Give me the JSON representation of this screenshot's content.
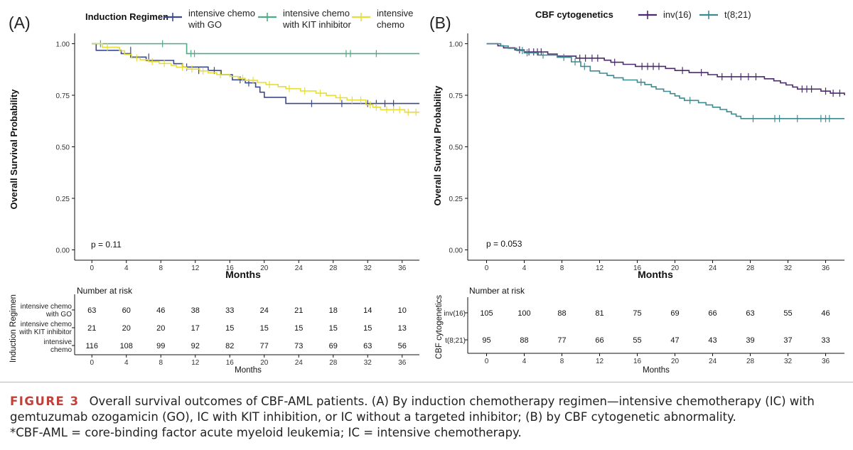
{
  "figure": {
    "caption_label": "FIGURE 3",
    "caption_text": "Overall survival outcomes of CBF-AML patients. (A) By induction chemotherapy regimen—intensive chemotherapy (IC) with gemtuzumab ozogamicin (GO), IC with KIT inhibition, or IC without a targeted inhibitor; (B) by CBF cytogenetic abnormality.",
    "caption_note": "*CBF-AML = core-binding factor acute myeloid leukemia; IC = intensive chemotherapy."
  },
  "chart_data": [
    {
      "type": "line",
      "panel_label": "(A)",
      "subtype": "kaplan-meier",
      "legend_title": "Induction Regimen",
      "legend_position": "top",
      "xlabel": "Months",
      "ylabel": "Overall Survival Probability",
      "xlim": [
        -2,
        38
      ],
      "ylim": [
        -0.05,
        1.05
      ],
      "xticks": [
        0,
        4,
        8,
        12,
        16,
        20,
        24,
        28,
        32,
        36
      ],
      "yticks": [
        0,
        0.25,
        0.5,
        0.75,
        1
      ],
      "ytick_labels": [
        "0.00",
        "0.25",
        "0.50",
        "0.75",
        "1.00"
      ],
      "grid": false,
      "p_value": "p = 0.11",
      "series": [
        {
          "name": "intensive chemo with GO",
          "legend_lines": [
            "intensive chemo",
            "with GO"
          ],
          "color": "#3b4a8c",
          "steps": [
            [
              0,
              1.0
            ],
            [
              0.5,
              0.968
            ],
            [
              3.4,
              0.952
            ],
            [
              4.5,
              0.935
            ],
            [
              6.3,
              0.919
            ],
            [
              9.5,
              0.903
            ],
            [
              10.5,
              0.887
            ],
            [
              13.5,
              0.87
            ],
            [
              15,
              0.85
            ],
            [
              16.3,
              0.825
            ],
            [
              17.8,
              0.81
            ],
            [
              19,
              0.79
            ],
            [
              19.5,
              0.765
            ],
            [
              20,
              0.74
            ],
            [
              22.5,
              0.71
            ],
            [
              38,
              0.71
            ]
          ],
          "censors": [
            [
              4.5,
              0.968
            ],
            [
              6.6,
              0.935
            ],
            [
              11,
              0.887
            ],
            [
              12.4,
              0.87
            ],
            [
              14.2,
              0.87
            ],
            [
              17.2,
              0.825
            ],
            [
              18.2,
              0.81
            ],
            [
              25.5,
              0.71
            ],
            [
              29,
              0.71
            ],
            [
              32,
              0.71
            ],
            [
              33,
              0.71
            ],
            [
              34,
              0.71
            ],
            [
              35,
              0.71
            ]
          ]
        },
        {
          "name": "intensive chemo with KIT inhibitor",
          "legend_lines": [
            "intensive chemo",
            "with KIT inhibitor"
          ],
          "color": "#4daa86",
          "steps": [
            [
              0,
              1.0
            ],
            [
              11,
              0.952
            ],
            [
              38,
              0.952
            ]
          ],
          "censors": [
            [
              1,
              1.0
            ],
            [
              8.2,
              1.0
            ],
            [
              11.5,
              0.952
            ],
            [
              11.9,
              0.952
            ],
            [
              29.5,
              0.952
            ],
            [
              30,
              0.952
            ],
            [
              33,
              0.952
            ]
          ]
        },
        {
          "name": "intensive chemo",
          "legend_lines": [
            "intensive",
            "chemo"
          ],
          "color": "#e6dd3a",
          "steps": [
            [
              0,
              1.0
            ],
            [
              1.2,
              0.983
            ],
            [
              3.2,
              0.966
            ],
            [
              3.8,
              0.948
            ],
            [
              4.6,
              0.931
            ],
            [
              5.6,
              0.922
            ],
            [
              6.6,
              0.913
            ],
            [
              7.8,
              0.904
            ],
            [
              9.2,
              0.895
            ],
            [
              9.8,
              0.886
            ],
            [
              11,
              0.877
            ],
            [
              12.5,
              0.868
            ],
            [
              13.5,
              0.859
            ],
            [
              14.5,
              0.85
            ],
            [
              16,
              0.841
            ],
            [
              17,
              0.832
            ],
            [
              17.8,
              0.822
            ],
            [
              19.2,
              0.812
            ],
            [
              20.2,
              0.802
            ],
            [
              21.6,
              0.792
            ],
            [
              22.5,
              0.782
            ],
            [
              24.2,
              0.771
            ],
            [
              26,
              0.76
            ],
            [
              27.2,
              0.749
            ],
            [
              28.3,
              0.738
            ],
            [
              29.6,
              0.727
            ],
            [
              31.8,
              0.704
            ],
            [
              32.6,
              0.692
            ],
            [
              33.5,
              0.68
            ],
            [
              36.3,
              0.668
            ],
            [
              38,
              0.668
            ]
          ],
          "censors": [
            [
              1.8,
              0.983
            ],
            [
              5.2,
              0.931
            ],
            [
              7,
              0.913
            ],
            [
              8.4,
              0.904
            ],
            [
              10.5,
              0.886
            ],
            [
              11.6,
              0.877
            ],
            [
              12.9,
              0.868
            ],
            [
              14.9,
              0.85
            ],
            [
              17.5,
              0.832
            ],
            [
              18.7,
              0.822
            ],
            [
              20.6,
              0.802
            ],
            [
              22.9,
              0.782
            ],
            [
              24.7,
              0.771
            ],
            [
              26.5,
              0.76
            ],
            [
              28.8,
              0.738
            ],
            [
              30.2,
              0.727
            ],
            [
              31.2,
              0.727
            ],
            [
              32.3,
              0.704
            ],
            [
              33,
              0.692
            ],
            [
              34.2,
              0.68
            ],
            [
              35,
              0.68
            ],
            [
              35.7,
              0.68
            ],
            [
              36.7,
              0.668
            ],
            [
              37.6,
              0.668
            ]
          ]
        }
      ],
      "risk_table": {
        "title": "Number at risk",
        "ylabel": "Induction Regimen",
        "xlabel": "Months",
        "times": [
          0,
          4,
          8,
          12,
          16,
          20,
          24,
          28,
          32,
          36
        ],
        "rows": [
          {
            "label_lines": [
              "intensive chemo",
              "with GO"
            ],
            "counts": [
              63,
              60,
              46,
              38,
              33,
              24,
              21,
              18,
              14,
              10
            ]
          },
          {
            "label_lines": [
              "intensive chemo",
              "with KIT inhibitor"
            ],
            "counts": [
              21,
              20,
              20,
              17,
              15,
              15,
              15,
              15,
              15,
              13
            ]
          },
          {
            "label_lines": [
              "intensive",
              "chemo"
            ],
            "counts": [
              116,
              108,
              99,
              92,
              82,
              77,
              73,
              69,
              63,
              56
            ]
          }
        ]
      }
    },
    {
      "type": "line",
      "panel_label": "(B)",
      "subtype": "kaplan-meier",
      "legend_title": "CBF cytogenetics",
      "legend_position": "top",
      "xlabel": "Months",
      "ylabel": "Overall Survival Probability",
      "xlim": [
        -2,
        38
      ],
      "ylim": [
        -0.05,
        1.05
      ],
      "xticks": [
        0,
        4,
        8,
        12,
        16,
        20,
        24,
        28,
        32,
        36
      ],
      "yticks": [
        0,
        0.25,
        0.5,
        0.75,
        1
      ],
      "ytick_labels": [
        "0.00",
        "0.25",
        "0.50",
        "0.75",
        "1.00"
      ],
      "grid": false,
      "p_value": "p = 0.053",
      "series": [
        {
          "name": "inv(16)",
          "legend_lines": [
            "inv(16)"
          ],
          "color": "#4b2a6d",
          "steps": [
            [
              0,
              1.0
            ],
            [
              1.2,
              0.99
            ],
            [
              1.8,
              0.98
            ],
            [
              3,
              0.97
            ],
            [
              4,
              0.96
            ],
            [
              6.5,
              0.95
            ],
            [
              7.5,
              0.94
            ],
            [
              9.5,
              0.93
            ],
            [
              12.5,
              0.92
            ],
            [
              13.2,
              0.91
            ],
            [
              14.5,
              0.9
            ],
            [
              15.8,
              0.89
            ],
            [
              19,
              0.88
            ],
            [
              20,
              0.87
            ],
            [
              21.5,
              0.86
            ],
            [
              23.5,
              0.85
            ],
            [
              24.5,
              0.84
            ],
            [
              29.5,
              0.83
            ],
            [
              30.5,
              0.82
            ],
            [
              31.2,
              0.81
            ],
            [
              31.8,
              0.8
            ],
            [
              32.5,
              0.79
            ],
            [
              33,
              0.78
            ],
            [
              35.5,
              0.77
            ],
            [
              36.5,
              0.76
            ],
            [
              38,
              0.75
            ]
          ],
          "censors": [
            [
              3.5,
              0.97
            ],
            [
              4.5,
              0.96
            ],
            [
              5,
              0.96
            ],
            [
              5.4,
              0.96
            ],
            [
              5.8,
              0.96
            ],
            [
              9.9,
              0.93
            ],
            [
              10.5,
              0.93
            ],
            [
              11.2,
              0.93
            ],
            [
              11.8,
              0.93
            ],
            [
              13.6,
              0.91
            ],
            [
              16.5,
              0.89
            ],
            [
              17.1,
              0.89
            ],
            [
              17.7,
              0.89
            ],
            [
              18.3,
              0.89
            ],
            [
              20.8,
              0.87
            ],
            [
              22.8,
              0.86
            ],
            [
              25,
              0.84
            ],
            [
              26,
              0.84
            ],
            [
              27,
              0.84
            ],
            [
              27.8,
              0.84
            ],
            [
              28.6,
              0.84
            ],
            [
              33.5,
              0.78
            ],
            [
              34,
              0.78
            ],
            [
              34.5,
              0.78
            ],
            [
              36,
              0.77
            ],
            [
              36.8,
              0.76
            ],
            [
              37.5,
              0.76
            ]
          ]
        },
        {
          "name": "t(8;21)",
          "legend_lines": [
            "t(8;21)"
          ],
          "color": "#3d8a91",
          "steps": [
            [
              0,
              1.0
            ],
            [
              1.5,
              0.989
            ],
            [
              2.3,
              0.978
            ],
            [
              3.2,
              0.967
            ],
            [
              4,
              0.956
            ],
            [
              5.5,
              0.945
            ],
            [
              7.5,
              0.934
            ],
            [
              9,
              0.912
            ],
            [
              10,
              0.89
            ],
            [
              11,
              0.868
            ],
            [
              12,
              0.857
            ],
            [
              12.8,
              0.846
            ],
            [
              13.5,
              0.835
            ],
            [
              14.5,
              0.824
            ],
            [
              16,
              0.813
            ],
            [
              16.8,
              0.802
            ],
            [
              17.5,
              0.791
            ],
            [
              18,
              0.78
            ],
            [
              18.8,
              0.769
            ],
            [
              19.5,
              0.758
            ],
            [
              20,
              0.747
            ],
            [
              20.5,
              0.736
            ],
            [
              21,
              0.725
            ],
            [
              22.5,
              0.714
            ],
            [
              23.3,
              0.703
            ],
            [
              24,
              0.692
            ],
            [
              24.8,
              0.681
            ],
            [
              25.5,
              0.67
            ],
            [
              26,
              0.659
            ],
            [
              26.5,
              0.648
            ],
            [
              27,
              0.637
            ],
            [
              38,
              0.637
            ]
          ],
          "censors": [
            [
              3.8,
              0.967
            ],
            [
              4.3,
              0.956
            ],
            [
              6,
              0.945
            ],
            [
              8.2,
              0.934
            ],
            [
              9.4,
              0.912
            ],
            [
              10.4,
              0.89
            ],
            [
              16.4,
              0.813
            ],
            [
              21.6,
              0.725
            ],
            [
              28.3,
              0.637
            ],
            [
              30.6,
              0.637
            ],
            [
              31.1,
              0.637
            ],
            [
              33,
              0.637
            ],
            [
              35.5,
              0.637
            ],
            [
              36,
              0.637
            ],
            [
              36.4,
              0.637
            ]
          ]
        }
      ],
      "risk_table": {
        "title": "Number at risk",
        "ylabel": "CBF cytogenetics",
        "xlabel": "Months",
        "times": [
          0,
          4,
          8,
          12,
          16,
          20,
          24,
          28,
          32,
          36
        ],
        "rows": [
          {
            "label_lines": [
              "inv(16)"
            ],
            "counts": [
              105,
              100,
              88,
              81,
              75,
              69,
              66,
              63,
              55,
              46
            ]
          },
          {
            "label_lines": [
              "t(8;21)"
            ],
            "counts": [
              95,
              88,
              77,
              66,
              55,
              47,
              43,
              39,
              37,
              33
            ]
          }
        ]
      }
    }
  ]
}
